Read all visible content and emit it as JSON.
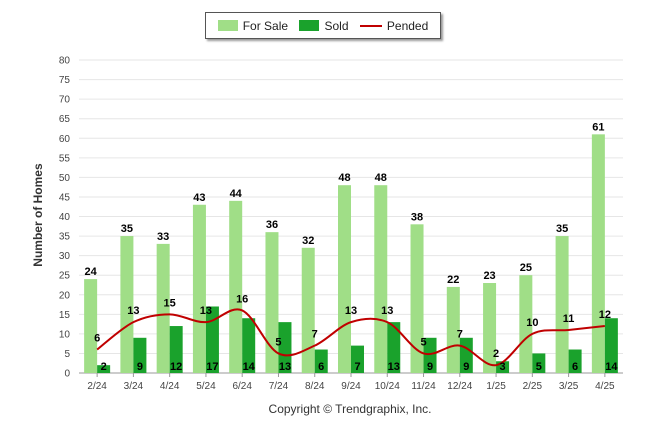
{
  "colors": {
    "for_sale": "#a0de87",
    "sold": "#1aa22c",
    "pended": "#c00000",
    "grid": "#e6e6e6",
    "axis": "#999999"
  },
  "legend": {
    "for_sale": "For Sale",
    "sold": "Sold",
    "pended": "Pended"
  },
  "footer": "Copyright © Trendgraphix, Inc.",
  "chart_data": {
    "type": "bar",
    "title": "",
    "xlabel": "",
    "ylabel": "Number of Homes",
    "ylim": [
      0,
      80
    ],
    "yticks": [
      0,
      5,
      10,
      15,
      20,
      25,
      30,
      35,
      40,
      45,
      50,
      55,
      60,
      65,
      70,
      75,
      80
    ],
    "grid": true,
    "legend_position": "top-center",
    "categories": [
      "2/24",
      "3/24",
      "4/24",
      "5/24",
      "6/24",
      "7/24",
      "8/24",
      "9/24",
      "10/24",
      "11/24",
      "12/24",
      "1/25",
      "2/25",
      "3/25",
      "4/25"
    ],
    "series": [
      {
        "name": "For Sale",
        "type": "bar",
        "values": [
          24,
          35,
          33,
          43,
          44,
          36,
          32,
          48,
          48,
          38,
          22,
          23,
          25,
          35,
          61
        ]
      },
      {
        "name": "Sold",
        "type": "bar",
        "values": [
          2,
          9,
          12,
          17,
          14,
          13,
          6,
          7,
          13,
          9,
          9,
          3,
          5,
          6,
          14
        ]
      },
      {
        "name": "Pended",
        "type": "line",
        "values": [
          6,
          13,
          15,
          13,
          16,
          5,
          7,
          13,
          13,
          5,
          7,
          2,
          10,
          11,
          12
        ]
      }
    ]
  }
}
